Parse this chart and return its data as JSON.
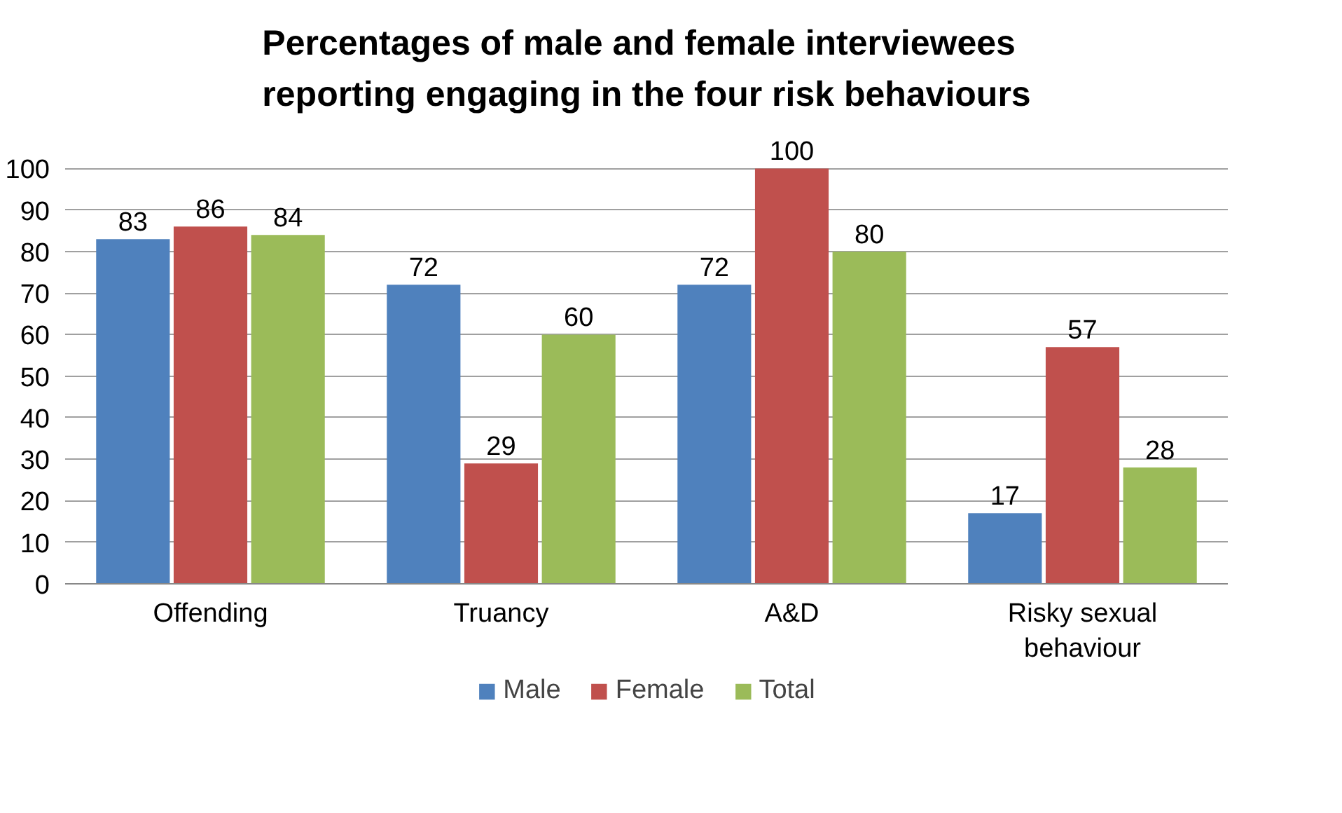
{
  "chart_data": {
    "type": "bar",
    "title": "Percentages of male and female interviewees reporting engaging in the four risk behaviours",
    "categories": [
      "Offending",
      "Truancy",
      "A&D",
      "Risky sexual behaviour"
    ],
    "series": [
      {
        "name": "Male",
        "color": "#4f81bd",
        "values": [
          83,
          72,
          72,
          17
        ]
      },
      {
        "name": "Female",
        "color": "#c0504d",
        "values": [
          86,
          29,
          100,
          57
        ]
      },
      {
        "name": "Total",
        "color": "#9bbb59",
        "values": [
          84,
          60,
          80,
          28
        ]
      }
    ],
    "ylim": [
      0,
      100
    ],
    "yticks": [
      0,
      10,
      20,
      30,
      40,
      50,
      60,
      70,
      80,
      90,
      100
    ],
    "grid": "y",
    "legend": "bottom",
    "data_labels": true
  }
}
